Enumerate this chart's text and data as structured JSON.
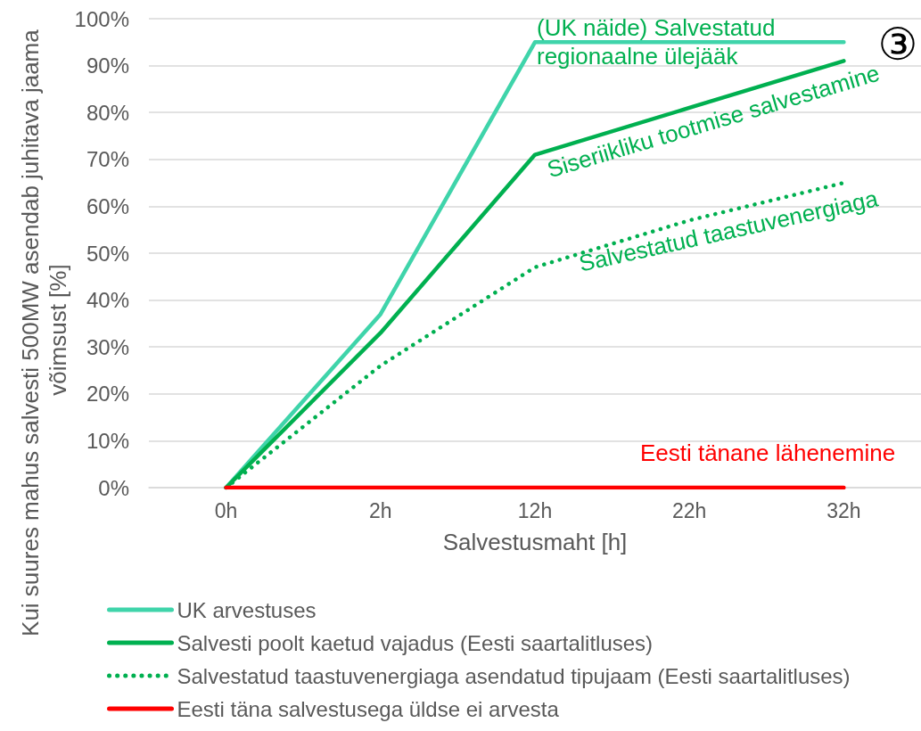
{
  "chart_data": {
    "type": "line",
    "xlabel": "Salvestusmaht [h]",
    "ylabel": "Kui suures mahus salvesti 500MW asendab juhitava jaama võimsust [%]",
    "categories": [
      "0h",
      "2h",
      "12h",
      "22h",
      "32h"
    ],
    "series": [
      {
        "name": "UK arvestuses",
        "color": "#3fd4aa",
        "values": [
          0,
          37,
          95,
          95,
          95
        ]
      },
      {
        "name": "Salvesti poolt kaetud vajadus (Eesti saartalitluses)",
        "color": "#00b050",
        "values": [
          0,
          33,
          71,
          81,
          91
        ]
      },
      {
        "name": "Salvestatud taastuvenergiaga asendatud tipujaam (Eesti saartalitluses)",
        "color": "#00b050",
        "values": [
          0,
          26,
          47,
          57,
          65
        ],
        "line_style": "dotted"
      },
      {
        "name": "Eesti täna salvestusega üldse ei arvesta",
        "color": "#ff0000",
        "values": [
          0,
          0,
          0,
          0,
          0
        ]
      }
    ],
    "ylim": [
      0,
      100
    ],
    "yticks": [
      {
        "value": 0,
        "label": "0%"
      },
      {
        "value": 10,
        "label": "10%"
      },
      {
        "value": 20,
        "label": "20%"
      },
      {
        "value": 30,
        "label": "30%"
      },
      {
        "value": 40,
        "label": "40%"
      },
      {
        "value": 50,
        "label": "50%"
      },
      {
        "value": 60,
        "label": "60%"
      },
      {
        "value": 70,
        "label": "70%"
      },
      {
        "value": 80,
        "label": "80%"
      },
      {
        "value": 90,
        "label": "90%"
      },
      {
        "value": 100,
        "label": "100%"
      }
    ],
    "grid": "y",
    "legend": "bottom",
    "marker": "none",
    "line_style": "solid",
    "annotations": [
      {
        "text": "(UK näide) Salvestatud regionaalne ülejääk",
        "x": "12h",
        "y": 95
      },
      "Siseriikliku tootmise salvestamine",
      "Salvestatud taastuvenergiaga",
      "Eesti tänane lähenemine",
      "③"
    ]
  }
}
